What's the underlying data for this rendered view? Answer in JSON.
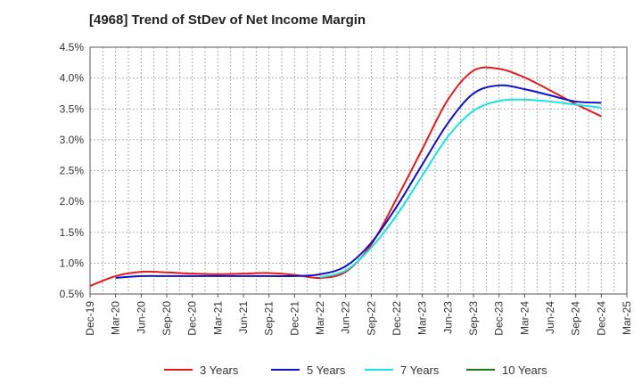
{
  "chart_data": {
    "type": "line",
    "title": "[4968]  Trend of StDev of Net Income Margin",
    "xlabel": "",
    "ylabel": "",
    "x_ticks": [
      "Dec-19",
      "Mar-20",
      "Jun-20",
      "Sep-20",
      "Dec-20",
      "Mar-21",
      "Jun-21",
      "Sep-21",
      "Dec-21",
      "Mar-22",
      "Jun-22",
      "Sep-22",
      "Dec-22",
      "Mar-23",
      "Jun-23",
      "Sep-23",
      "Dec-23",
      "Mar-24",
      "Jun-24",
      "Sep-24",
      "Dec-24",
      "Mar-25"
    ],
    "y_ticks": [
      "0.5%",
      "1.0%",
      "1.5%",
      "2.0%",
      "2.5%",
      "3.0%",
      "3.5%",
      "4.0%",
      "4.5%"
    ],
    "ylim": [
      0.5,
      4.5
    ],
    "grid": true,
    "legend_position": "bottom",
    "series": [
      {
        "name": "3 Years",
        "color": "#e31a1c",
        "x": [
          "Dec-19",
          "Mar-20",
          "Jun-20",
          "Sep-20",
          "Dec-20",
          "Mar-21",
          "Jun-21",
          "Sep-21",
          "Dec-21",
          "Mar-22",
          "Jun-22",
          "Sep-22",
          "Dec-22",
          "Mar-23",
          "Jun-23",
          "Sep-23",
          "Dec-23",
          "Mar-24",
          "Jun-24",
          "Sep-24",
          "Dec-24"
        ],
        "values": [
          0.63,
          0.79,
          0.86,
          0.85,
          0.83,
          0.82,
          0.83,
          0.84,
          0.81,
          0.76,
          0.86,
          1.3,
          2.05,
          2.85,
          3.65,
          4.12,
          4.15,
          4.01,
          3.8,
          3.58,
          3.38
        ]
      },
      {
        "name": "5 Years",
        "color": "#1010c8",
        "x": [
          "Mar-20",
          "Jun-20",
          "Sep-20",
          "Dec-20",
          "Mar-21",
          "Jun-21",
          "Sep-21",
          "Dec-21",
          "Mar-22",
          "Jun-22",
          "Sep-22",
          "Dec-22",
          "Mar-23",
          "Jun-23",
          "Sep-23",
          "Dec-23",
          "Mar-24",
          "Jun-24",
          "Sep-24",
          "Dec-24"
        ],
        "values": [
          0.76,
          0.79,
          0.79,
          0.79,
          0.79,
          0.79,
          0.79,
          0.79,
          0.82,
          0.95,
          1.33,
          1.92,
          2.6,
          3.27,
          3.75,
          3.88,
          3.82,
          3.72,
          3.62,
          3.6
        ]
      },
      {
        "name": "7 Years",
        "color": "#19e3e3",
        "x": [
          "Mar-22",
          "Jun-22",
          "Sep-22",
          "Dec-22",
          "Mar-23",
          "Jun-23",
          "Sep-23",
          "Dec-23",
          "Mar-24",
          "Jun-24",
          "Sep-24",
          "Dec-24"
        ],
        "values": [
          0.77,
          0.88,
          1.25,
          1.78,
          2.42,
          3.05,
          3.47,
          3.63,
          3.65,
          3.62,
          3.57,
          3.52
        ]
      },
      {
        "name": "10 Years",
        "color": "#1a7a1a",
        "x": [],
        "values": []
      }
    ]
  }
}
